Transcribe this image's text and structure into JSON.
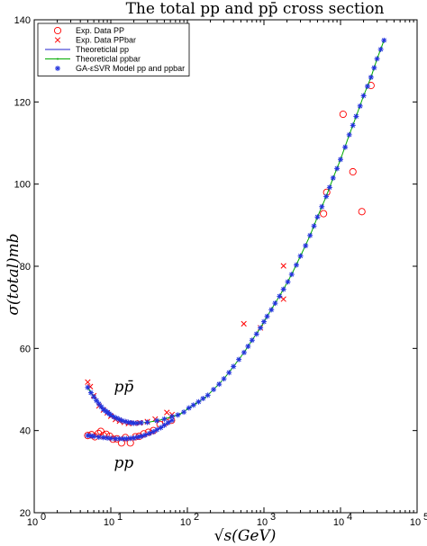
{
  "chart_data": {
    "type": "scatter",
    "title": "The total pp and pp̄ cross section",
    "xlabel": "√s(GeV)",
    "ylabel": "σ(total)mb",
    "x_scale": "log",
    "xlim": [
      1,
      100000
    ],
    "ylim": [
      20,
      140
    ],
    "x_ticks": [
      {
        "value": 1,
        "base": "10",
        "exp": "0"
      },
      {
        "value": 10,
        "base": "10",
        "exp": "1"
      },
      {
        "value": 100,
        "base": "10",
        "exp": "2"
      },
      {
        "value": 1000,
        "base": "10",
        "exp": "3"
      },
      {
        "value": 10000,
        "base": "10",
        "exp": "4"
      },
      {
        "value": 100000,
        "base": "10",
        "exp": "5"
      }
    ],
    "y_ticks": [
      20,
      40,
      60,
      80,
      100,
      120,
      140
    ],
    "grid": false,
    "legend_position": "top-left",
    "annotations": [
      {
        "text": "pp̄",
        "x": 11,
        "y": 49.5
      },
      {
        "text": "pp",
        "x": 11,
        "y": 31
      }
    ],
    "series": [
      {
        "name": "Exp. Data PP",
        "marker": "circle",
        "color": "#ff0000",
        "points": [
          [
            5.0,
            38.8
          ],
          [
            5.6,
            39.0
          ],
          [
            6.2,
            38.5
          ],
          [
            6.9,
            39.3
          ],
          [
            7.4,
            39.8
          ],
          [
            8.0,
            38.8
          ],
          [
            8.7,
            39.1
          ],
          [
            9.7,
            38.6
          ],
          [
            10.7,
            37.9
          ],
          [
            12.0,
            38.0
          ],
          [
            13.8,
            37.0
          ],
          [
            15.5,
            38.3
          ],
          [
            18.0,
            37.0
          ],
          [
            21.0,
            38.5
          ],
          [
            23.5,
            38.6
          ],
          [
            27.0,
            39.2
          ],
          [
            31.0,
            39.6
          ],
          [
            36.0,
            40.0
          ],
          [
            44.0,
            41.5
          ],
          [
            52.0,
            42.0
          ],
          [
            62.0,
            42.5
          ],
          [
            6000,
            92.8
          ],
          [
            6600,
            98.0
          ],
          [
            10800,
            117.0
          ],
          [
            14500,
            103.0
          ],
          [
            19000,
            93.3
          ],
          [
            25000,
            124.0
          ]
        ]
      },
      {
        "name": "Exp. Data PPbar",
        "marker": "x",
        "color": "#ff0000",
        "points": [
          [
            5.0,
            51.8
          ],
          [
            5.4,
            50.7
          ],
          [
            6.0,
            48.5
          ],
          [
            7.0,
            46.0
          ],
          [
            8.0,
            45.0
          ],
          [
            9.0,
            44.3
          ],
          [
            10.0,
            43.5
          ],
          [
            11.5,
            42.7
          ],
          [
            13.0,
            42.3
          ],
          [
            15.0,
            42.0
          ],
          [
            17.0,
            41.7
          ],
          [
            20.0,
            41.8
          ],
          [
            24.0,
            41.9
          ],
          [
            30.0,
            42.2
          ],
          [
            38.0,
            42.8
          ],
          [
            54.0,
            44.4
          ],
          [
            63.0,
            43.9
          ],
          [
            546,
            66.0
          ],
          [
            900,
            65.0
          ],
          [
            1800,
            72.0
          ],
          [
            1800,
            80.1
          ]
        ]
      },
      {
        "name": "Theoreticlal pp",
        "marker": "line",
        "color": "#2222cc",
        "points": [
          [
            5.0,
            38.8
          ],
          [
            6.0,
            38.6
          ],
          [
            8.0,
            38.3
          ],
          [
            10.0,
            38.1
          ],
          [
            13.0,
            38.0
          ],
          [
            16.0,
            38.0
          ],
          [
            20.0,
            38.2
          ],
          [
            25.0,
            38.6
          ],
          [
            32.0,
            39.3
          ],
          [
            40.0,
            40.2
          ],
          [
            50.0,
            41.3
          ],
          [
            63.0,
            42.5
          ]
        ]
      },
      {
        "name": "Theoreticlal ppbar",
        "marker": "line-dot",
        "color": "#00aa00",
        "points": [
          [
            5.0,
            50.5
          ],
          [
            6.0,
            48.2
          ],
          [
            7.0,
            46.5
          ],
          [
            8.0,
            45.2
          ],
          [
            9.0,
            44.5
          ],
          [
            10.0,
            43.8
          ],
          [
            12.0,
            43.0
          ],
          [
            14.0,
            42.4
          ],
          [
            17.0,
            42.0
          ],
          [
            20.0,
            41.8
          ],
          [
            25.0,
            41.9
          ],
          [
            30.0,
            42.0
          ],
          [
            40.0,
            42.4
          ],
          [
            50.0,
            42.8
          ],
          [
            63.0,
            43.4
          ],
          [
            80.0,
            44.0
          ],
          [
            100.0,
            45.2
          ],
          [
            130.0,
            46.6
          ],
          [
            170.0,
            48.0
          ],
          [
            220.0,
            50.0
          ],
          [
            300.0,
            52.6
          ],
          [
            400.0,
            55.6
          ],
          [
            550.0,
            59.0
          ],
          [
            700.0,
            62.0
          ],
          [
            900.0,
            65.0
          ],
          [
            1100.0,
            67.8
          ],
          [
            1400.0,
            71.0
          ],
          [
            1800.0,
            74.4
          ],
          [
            2300.0,
            78.0
          ],
          [
            3000.0,
            82.5
          ],
          [
            4000.0,
            87.5
          ],
          [
            5000.0,
            92.0
          ],
          [
            6500.0,
            97.0
          ],
          [
            8000.0,
            101.5
          ],
          [
            10000.0,
            106.0
          ],
          [
            13000.0,
            112.0
          ],
          [
            16000.0,
            116.5
          ],
          [
            20000.0,
            121.5
          ],
          [
            25000.0,
            126.0
          ],
          [
            30000.0,
            130.5
          ],
          [
            37000.0,
            135.0
          ]
        ]
      },
      {
        "name": "GA-εSVR Model pp and ppbar",
        "marker": "asterisk",
        "color": "#2233dd",
        "points": [
          [
            5.0,
            50.5
          ],
          [
            5.5,
            49.2
          ],
          [
            6.0,
            48.2
          ],
          [
            6.5,
            47.3
          ],
          [
            7.0,
            46.5
          ],
          [
            7.5,
            45.8
          ],
          [
            8.0,
            45.2
          ],
          [
            8.5,
            44.8
          ],
          [
            9.0,
            44.5
          ],
          [
            9.5,
            44.1
          ],
          [
            10.0,
            43.8
          ],
          [
            11.0,
            43.3
          ],
          [
            12.0,
            43.0
          ],
          [
            13.0,
            42.7
          ],
          [
            14.0,
            42.4
          ],
          [
            15.5,
            42.2
          ],
          [
            17.0,
            42.0
          ],
          [
            18.5,
            41.9
          ],
          [
            20.0,
            41.8
          ],
          [
            22.0,
            41.8
          ],
          [
            25.0,
            41.9
          ],
          [
            30.0,
            42.0
          ],
          [
            40.0,
            42.4
          ],
          [
            50.0,
            42.8
          ],
          [
            63.0,
            43.4
          ],
          [
            75.0,
            43.8
          ],
          [
            90.0,
            44.5
          ],
          [
            105.0,
            45.5
          ],
          [
            120.0,
            46.2
          ],
          [
            140.0,
            47.0
          ],
          [
            160.0,
            47.8
          ],
          [
            185.0,
            48.6
          ],
          [
            220.0,
            50.0
          ],
          [
            260.0,
            51.3
          ],
          [
            300.0,
            52.6
          ],
          [
            350.0,
            54.1
          ],
          [
            400.0,
            55.6
          ],
          [
            470.0,
            57.3
          ],
          [
            550.0,
            59.0
          ],
          [
            620.0,
            60.5
          ],
          [
            700.0,
            62.0
          ],
          [
            800.0,
            63.5
          ],
          [
            900.0,
            65.0
          ],
          [
            1000.0,
            66.5
          ],
          [
            1100.0,
            67.8
          ],
          [
            1250.0,
            69.4
          ],
          [
            1400.0,
            71.0
          ],
          [
            1600.0,
            72.7
          ],
          [
            1800.0,
            74.4
          ],
          [
            2050.0,
            76.2
          ],
          [
            2300.0,
            78.0
          ],
          [
            2650.0,
            80.3
          ],
          [
            3000.0,
            82.5
          ],
          [
            3500.0,
            85.0
          ],
          [
            4000.0,
            87.5
          ],
          [
            4500.0,
            89.8
          ],
          [
            5000.0,
            92.0
          ],
          [
            5700.0,
            94.5
          ],
          [
            6500.0,
            97.0
          ],
          [
            7200.0,
            99.2
          ],
          [
            8000.0,
            101.5
          ],
          [
            9000.0,
            103.8
          ],
          [
            10000.0,
            106.0
          ],
          [
            11500.0,
            109.0
          ],
          [
            13000.0,
            112.0
          ],
          [
            14500.0,
            114.3
          ],
          [
            16000.0,
            116.5
          ],
          [
            18000.0,
            119.0
          ],
          [
            20000.0,
            121.5
          ],
          [
            22500.0,
            123.8
          ],
          [
            25000.0,
            126.0
          ],
          [
            27500.0,
            128.3
          ],
          [
            30000.0,
            130.5
          ],
          [
            33500.0,
            132.8
          ],
          [
            37000.0,
            135.0
          ],
          [
            5.0,
            38.8
          ],
          [
            5.5,
            38.7
          ],
          [
            6.0,
            38.6
          ],
          [
            7.0,
            38.4
          ],
          [
            8.0,
            38.3
          ],
          [
            9.0,
            38.2
          ],
          [
            10.0,
            38.1
          ],
          [
            11.5,
            38.0
          ],
          [
            13.0,
            38.0
          ],
          [
            14.5,
            38.0
          ],
          [
            16.0,
            38.0
          ],
          [
            18.0,
            38.1
          ],
          [
            20.0,
            38.2
          ],
          [
            22.5,
            38.4
          ],
          [
            25.0,
            38.6
          ],
          [
            28.0,
            38.9
          ],
          [
            32.0,
            39.3
          ],
          [
            36.0,
            39.7
          ],
          [
            40.0,
            40.2
          ],
          [
            45.0,
            40.7
          ],
          [
            50.0,
            41.3
          ],
          [
            56.0,
            41.9
          ],
          [
            63.0,
            42.5
          ]
        ]
      }
    ]
  }
}
